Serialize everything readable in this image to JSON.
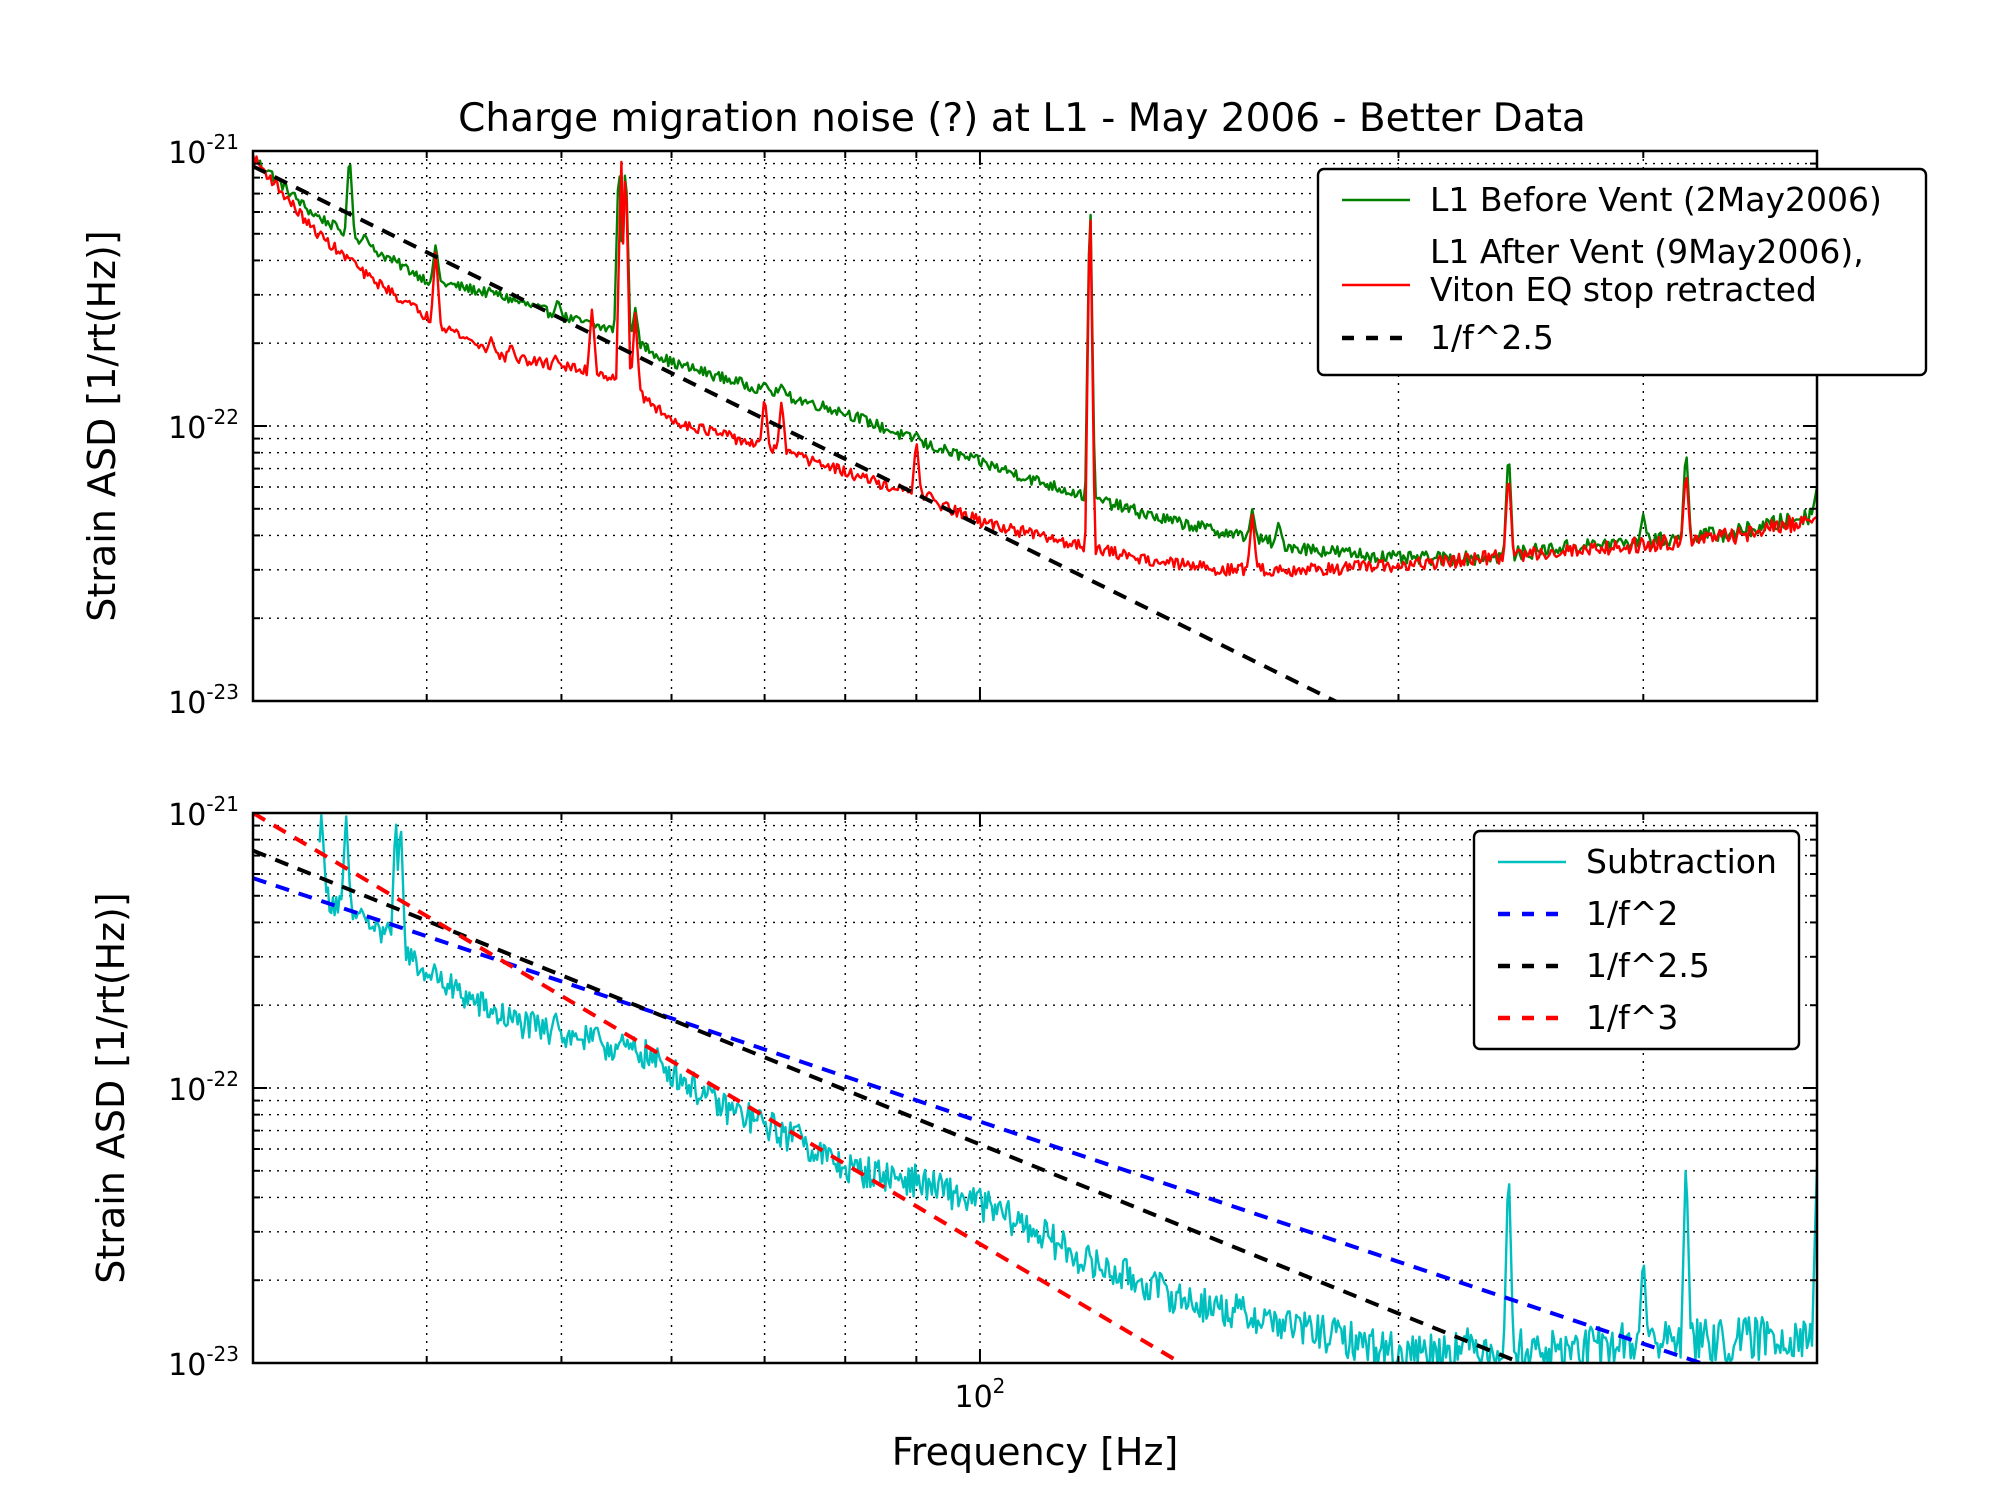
{
  "figure": {
    "title": "Charge migration noise (?) at L1 - May 2006 - Better Data"
  },
  "chart_data": [
    {
      "type": "line",
      "title": "Charge migration noise (?) at L1 - May 2006 - Better Data",
      "xlabel": "",
      "ylabel": "Strain ASD [1/rt(Hz)]",
      "xscale": "log",
      "yscale": "log",
      "xlim": [
        30,
        400
      ],
      "ylim": [
        1e-23,
        1e-21
      ],
      "grid": true,
      "legend_position": "top-right",
      "y_tick_labels": [
        {
          "value": 1e-21,
          "base": "10",
          "exp": "-21"
        },
        {
          "value": 1e-22,
          "base": "10",
          "exp": "-22"
        },
        {
          "value": 1e-23,
          "base": "10",
          "exp": "-23"
        }
      ],
      "series": [
        {
          "name": "L1 Before Vent (2May2006)",
          "color": "#008000",
          "style": "solid",
          "x": [
            30,
            33,
            36,
            40,
            45,
            50,
            55,
            60,
            70,
            80,
            90,
            100,
            110,
            120,
            135,
            150,
            170,
            200,
            230,
            260,
            300,
            350,
            400
          ],
          "y": [
            9.5e-22,
            6e-22,
            4.6e-22,
            3.4e-22,
            3e-22,
            2.5e-22,
            2.2e-22,
            1.7e-22,
            1.35e-22,
            1.12e-22,
            8.8e-23,
            7.4e-23,
            6.3e-23,
            5.5e-23,
            4.6e-23,
            4.1e-23,
            3.6e-23,
            3.3e-23,
            3.3e-23,
            3.6e-23,
            3.8e-23,
            4.1e-23,
            4.8e-23
          ],
          "peaks": [
            {
              "x": 30.8,
              "y": 8.5e-22
            },
            {
              "x": 35.2,
              "y": 1e-21
            },
            {
              "x": 36.1,
              "y": 5e-22
            },
            {
              "x": 40.6,
              "y": 4.6e-22
            },
            {
              "x": 44.6,
              "y": 3e-22
            },
            {
              "x": 46.2,
              "y": 2.8e-22
            },
            {
              "x": 49.7,
              "y": 2.9e-22
            },
            {
              "x": 55.0,
              "y": 1e-21
            },
            {
              "x": 55.6,
              "y": 1e-21
            },
            {
              "x": 56.5,
              "y": 2.7e-22
            },
            {
              "x": 70.0,
              "y": 1.45e-22
            },
            {
              "x": 72.0,
              "y": 1.42e-22
            },
            {
              "x": 90.0,
              "y": 9.5e-23
            },
            {
              "x": 120.0,
              "y": 8e-22
            },
            {
              "x": 157.0,
              "y": 5e-23
            },
            {
              "x": 164.0,
              "y": 4.5e-23
            },
            {
              "x": 240.0,
              "y": 8.5e-23
            },
            {
              "x": 300.0,
              "y": 4.8e-23
            },
            {
              "x": 322.0,
              "y": 8.5e-23
            },
            {
              "x": 400.0,
              "y": 6e-23
            }
          ]
        },
        {
          "name": "L1 After Vent (9May2006), Viton EQ stop retracted",
          "color": "#ff0000",
          "style": "solid",
          "x": [
            30,
            33,
            36,
            40,
            45,
            50,
            55,
            60,
            70,
            80,
            90,
            100,
            110,
            120,
            135,
            150,
            170,
            200,
            230,
            260,
            300,
            350,
            400
          ],
          "y": [
            9.5e-22,
            5.3e-22,
            3.6e-22,
            2.5e-22,
            1.8e-22,
            1.65e-22,
            1.5e-22,
            1.05e-22,
            8.4e-23,
            6.8e-23,
            5.6e-23,
            4.5e-23,
            4e-23,
            3.6e-23,
            3.2e-23,
            3e-23,
            3e-23,
            3.1e-23,
            3.3e-23,
            3.5e-23,
            3.7e-23,
            4e-23,
            4.6e-23
          ],
          "peaks": [
            {
              "x": 31.0,
              "y": 6.6e-22
            },
            {
              "x": 35.3,
              "y": 4.1e-22
            },
            {
              "x": 37.0,
              "y": 3e-22
            },
            {
              "x": 40.6,
              "y": 4.4e-22
            },
            {
              "x": 44.5,
              "y": 2.1e-22
            },
            {
              "x": 46.0,
              "y": 2e-22
            },
            {
              "x": 49.5,
              "y": 1.8e-22
            },
            {
              "x": 52.6,
              "y": 2.7e-22
            },
            {
              "x": 55.2,
              "y": 1e-21
            },
            {
              "x": 55.6,
              "y": 1e-21
            },
            {
              "x": 56.5,
              "y": 2.6e-22
            },
            {
              "x": 70.0,
              "y": 1.3e-22
            },
            {
              "x": 72.0,
              "y": 1.25e-22
            },
            {
              "x": 76.0,
              "y": 7.5e-23
            },
            {
              "x": 90.0,
              "y": 9e-23
            },
            {
              "x": 92.0,
              "y": 5.8e-23
            },
            {
              "x": 120.0,
              "y": 8e-22
            },
            {
              "x": 157.0,
              "y": 4.8e-23
            },
            {
              "x": 240.0,
              "y": 7e-23
            },
            {
              "x": 322.0,
              "y": 7e-23
            }
          ]
        },
        {
          "name": "1/f^2.5",
          "color": "#000000",
          "style": "dashed",
          "x": [
            30,
            400
          ],
          "y": [
            8.8e-22,
            1.36e-24
          ]
        }
      ]
    },
    {
      "type": "line",
      "xlabel": "Frequency [Hz]",
      "ylabel": "Strain ASD [1/rt(Hz)]",
      "xscale": "log",
      "yscale": "log",
      "xlim": [
        30,
        400
      ],
      "ylim": [
        1e-23,
        1e-21
      ],
      "grid": true,
      "legend_position": "top-right",
      "x_tick_labels": [
        {
          "value": 100,
          "base": "10",
          "exp": "2"
        }
      ],
      "y_tick_labels": [
        {
          "value": 1e-21,
          "base": "10",
          "exp": "-21"
        },
        {
          "value": 1e-22,
          "base": "10",
          "exp": "-22"
        },
        {
          "value": 1e-23,
          "base": "10",
          "exp": "-23"
        }
      ],
      "series": [
        {
          "name": "Subtraction",
          "color": "#00bfbf",
          "style": "solid",
          "x": [
            33.5,
            36,
            38,
            40,
            43,
            45,
            47,
            50,
            53,
            55,
            57,
            60,
            65,
            70,
            75,
            80,
            90,
            100,
            110,
            120,
            130,
            140,
            160,
            180,
            200,
            230,
            260,
            300,
            350,
            400
          ],
          "y": [
            5.2e-22,
            4e-22,
            3.3e-22,
            2.6e-22,
            2.1e-22,
            1.85e-22,
            1.7e-22,
            1.55e-22,
            1.45e-22,
            1.4e-22,
            1.35e-22,
            1.15e-22,
            8.6e-23,
            7.4e-23,
            6.2e-23,
            5.1e-23,
            4.6e-23,
            3.8e-23,
            3e-23,
            2.3e-23,
            2e-23,
            1.7e-23,
            1.45e-23,
            1.25e-23,
            1.1e-23,
            1.15e-23,
            1.1e-23,
            1.2e-23,
            1.2e-23,
            1.3e-23
          ],
          "peaks": [
            {
              "x": 33.6,
              "y": 1e-21
            },
            {
              "x": 35.0,
              "y": 1e-21
            },
            {
              "x": 35.9,
              "y": 4.5e-22
            },
            {
              "x": 36.3,
              "y": 3e-22
            },
            {
              "x": 37.5,
              "y": 4e-22
            },
            {
              "x": 38.0,
              "y": 1e-21
            },
            {
              "x": 38.3,
              "y": 1e-21
            },
            {
              "x": 38.9,
              "y": 2.8e-22
            },
            {
              "x": 39.3,
              "y": 1.05e-22
            },
            {
              "x": 40.6,
              "y": 2.3e-22
            },
            {
              "x": 49.5,
              "y": 1.9e-22
            },
            {
              "x": 51.5,
              "y": 1.5e-22
            },
            {
              "x": 53.0,
              "y": 1.7e-22
            },
            {
              "x": 67.5,
              "y": 6.4e-23
            },
            {
              "x": 74.0,
              "y": 7.5e-23
            },
            {
              "x": 118.0,
              "y": 1.4e-23
            },
            {
              "x": 240.0,
              "y": 5.5e-23
            },
            {
              "x": 300.0,
              "y": 2.5e-23
            },
            {
              "x": 322.0,
              "y": 5.8e-23
            },
            {
              "x": 400.0,
              "y": 5.2e-23
            }
          ]
        },
        {
          "name": "1/f^2",
          "color": "#0000ff",
          "style": "dashed",
          "x": [
            30,
            330
          ],
          "y": [
            5.8e-22,
            1e-23
          ]
        },
        {
          "name": "1/f^2.5",
          "color": "#000000",
          "style": "dashed",
          "x": [
            30,
            245
          ],
          "y": [
            7.3e-22,
            1e-23
          ]
        },
        {
          "name": "1/f^3",
          "color": "#ff0000",
          "style": "dashed",
          "x": [
            30,
            161
          ],
          "y": [
            1e-21,
            6.5e-24
          ]
        }
      ]
    }
  ]
}
